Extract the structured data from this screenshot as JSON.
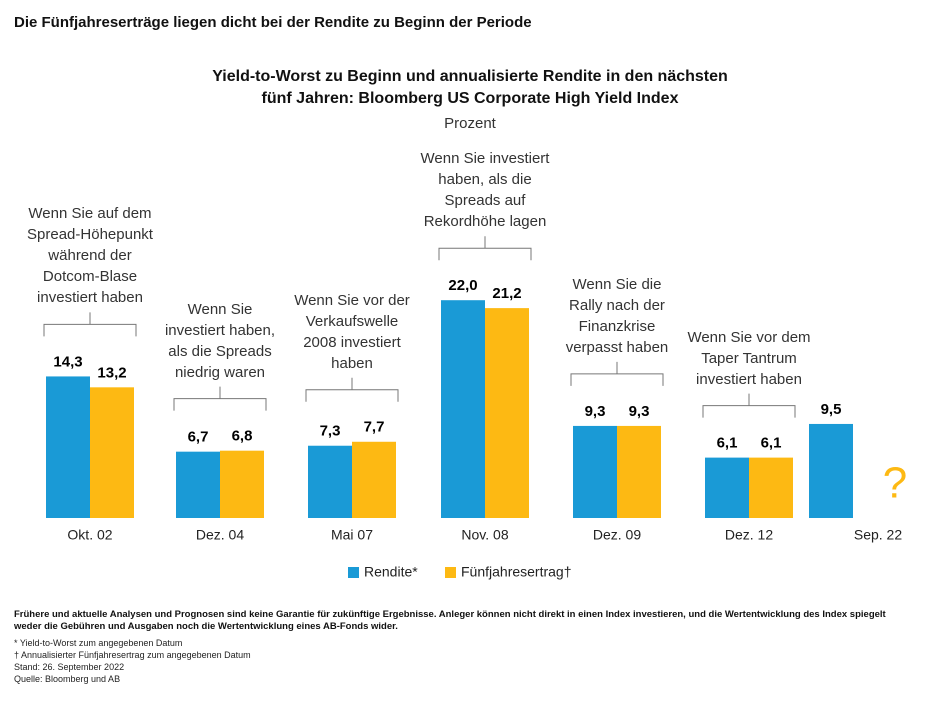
{
  "heading": "Die Fünfjahreserträge liegen dicht bei der Rendite zu Beginn der Periode",
  "chart_data": {
    "type": "bar",
    "title": "Yield-to-Worst zu Beginn und annualisierte Rendite in den nächsten\nfünf Jahren: Bloomberg US Corporate High Yield Index",
    "subtitle": "Prozent",
    "categories": [
      "Okt. 02",
      "Dez. 04",
      "Mai 07",
      "Nov. 08",
      "Dez. 09",
      "Dez. 12",
      "Sep. 22"
    ],
    "series": [
      {
        "name": "Rendite*",
        "color": "#1a9ad6",
        "values": [
          14.3,
          6.7,
          7.3,
          22.0,
          9.3,
          6.1,
          9.5
        ],
        "value_labels": [
          "14,3",
          "6,7",
          "7,3",
          "22,0",
          "9,3",
          "6,1",
          "9,5"
        ]
      },
      {
        "name": "Fünfjahresertrag†",
        "color": "#fdb913",
        "values": [
          13.2,
          6.8,
          7.7,
          21.2,
          9.3,
          6.1,
          null
        ],
        "value_labels": [
          "13,2",
          "6,8",
          "7,7",
          "21,2",
          "9,3",
          "6,1",
          "?"
        ]
      }
    ],
    "annotations": [
      "Wenn Sie auf dem\nSpread-Höhepunkt\nwährend der\nDotcom-Blase\ninvestiert haben",
      "Wenn Sie\ninvestiert haben,\nals die Spreads\nniedrig waren",
      "Wenn Sie vor der\nVerkaufswelle\n2008 investiert\nhaben",
      "Wenn Sie investiert\nhaben, als die\nSpreads auf\nRekordhöhe lagen",
      "Wenn Sie die\nRally nach der\nFinanzkrise\nverpasst haben",
      "Wenn Sie vor dem\nTaper Tantrum\ninvestiert haben",
      null
    ]
  },
  "footnotes": {
    "disclaimer": "Frühere und aktuelle Analysen und Prognosen sind keine Garantie für zukünftige Ergebnisse. Anleger können nicht direkt in einen Index investieren, und die Wertentwicklung des Index spiegelt weder die Gebühren und Ausgaben noch die Wertentwicklung eines AB-Fonds wider.",
    "notes": [
      "* Yield-to-Worst zum angegebenen Datum",
      "† Annualisierter Fünfjahresertrag zum angegebenen Datum",
      "Stand: 26. September 2022",
      "Quelle: Bloomberg und AB"
    ]
  }
}
